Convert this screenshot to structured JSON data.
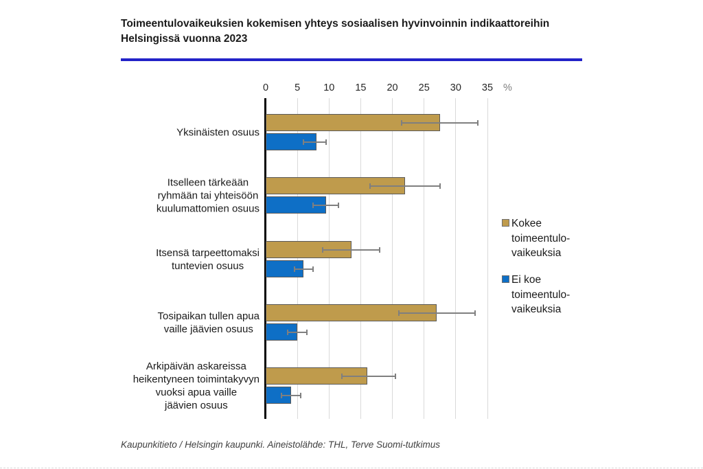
{
  "page": {
    "title_line1": "Toimeentulovaikeuksien kokemisen yhteys sosiaalisen hyvinvoinnin indikaattoreihin",
    "title_line2": "Helsingissä vuonna 2023",
    "footer": "Kaupunkitieto / Helsingin kaupunki. Aineistolähde: THL, Terve Suomi-tutkimus"
  },
  "colors": {
    "accent_rule": "#2222c8",
    "bar_kokee": "#bf9b4c",
    "bar_ei_koe": "#0e6fc6",
    "bar_border": "#595959",
    "gridline": "#d9d9d9",
    "axis": "#000000",
    "error_bar": "#7f7f7f",
    "tick_label": "#262626",
    "percent_label": "#7f7f7f"
  },
  "chart_data": {
    "type": "bar",
    "orientation": "horizontal",
    "title": "Toimeentulovaikeuksien kokemisen yhteys sosiaalisen hyvinvoinnin indikaattoreihin Helsingissä vuonna 2023",
    "value_unit": "%",
    "xlim": [
      0,
      35
    ],
    "x_ticks": [
      0,
      5,
      10,
      15,
      20,
      25,
      30,
      35
    ],
    "x_axis_label": "%",
    "grid": true,
    "legend_position": "right",
    "categories": [
      {
        "label": "Yksinäisten osuus",
        "lines": [
          "Yksinäisten osuus"
        ]
      },
      {
        "label": "Itselleen tärkeään ryhmään tai yhteisöön kuulumattomien osuus",
        "lines": [
          "Itselleen tärkeään",
          "ryhmään tai yhteisöön",
          "kuulumattomien osuus"
        ]
      },
      {
        "label": "Itsensä tarpeettomaksi tuntevien osuus",
        "lines": [
          "Itsensä tarpeettomaksi",
          "tuntevien osuus"
        ]
      },
      {
        "label": "Tosipaikan tullen apua vaille jäävien osuus",
        "lines": [
          "Tosipaikan tullen apua",
          "vaille jäävien osuus"
        ]
      },
      {
        "label": "Arkipäivän askareissa heikentyneen toimintakyvyn vuoksi apua vaille jäävien osuus",
        "lines": [
          "Arkipäivän askareissa",
          "heikentyneen toimintakyvyn",
          "vuoksi apua vaille",
          "jäävien osuus"
        ]
      }
    ],
    "series": [
      {
        "name": "Kokee toimeentulovaikeuksia",
        "legend_lines": [
          "Kokee",
          "toimeentulo-",
          "vaikeuksia"
        ],
        "color": "#bf9b4c",
        "values": [
          27.5,
          22,
          13.5,
          27,
          16
        ],
        "error_low": [
          21.5,
          16.5,
          9,
          21,
          12
        ],
        "error_high": [
          33.5,
          27.5,
          18,
          33,
          20.5
        ]
      },
      {
        "name": "Ei koe toimeentulovaikeuksia",
        "legend_lines": [
          "Ei koe",
          "toimeentulo-",
          "vaikeuksia"
        ],
        "color": "#0e6fc6",
        "values": [
          8,
          9.5,
          6,
          5,
          4
        ],
        "error_low": [
          6,
          7.5,
          4.5,
          3.5,
          2.5
        ],
        "error_high": [
          9.5,
          11.5,
          7.5,
          6.5,
          5.5
        ]
      }
    ]
  }
}
